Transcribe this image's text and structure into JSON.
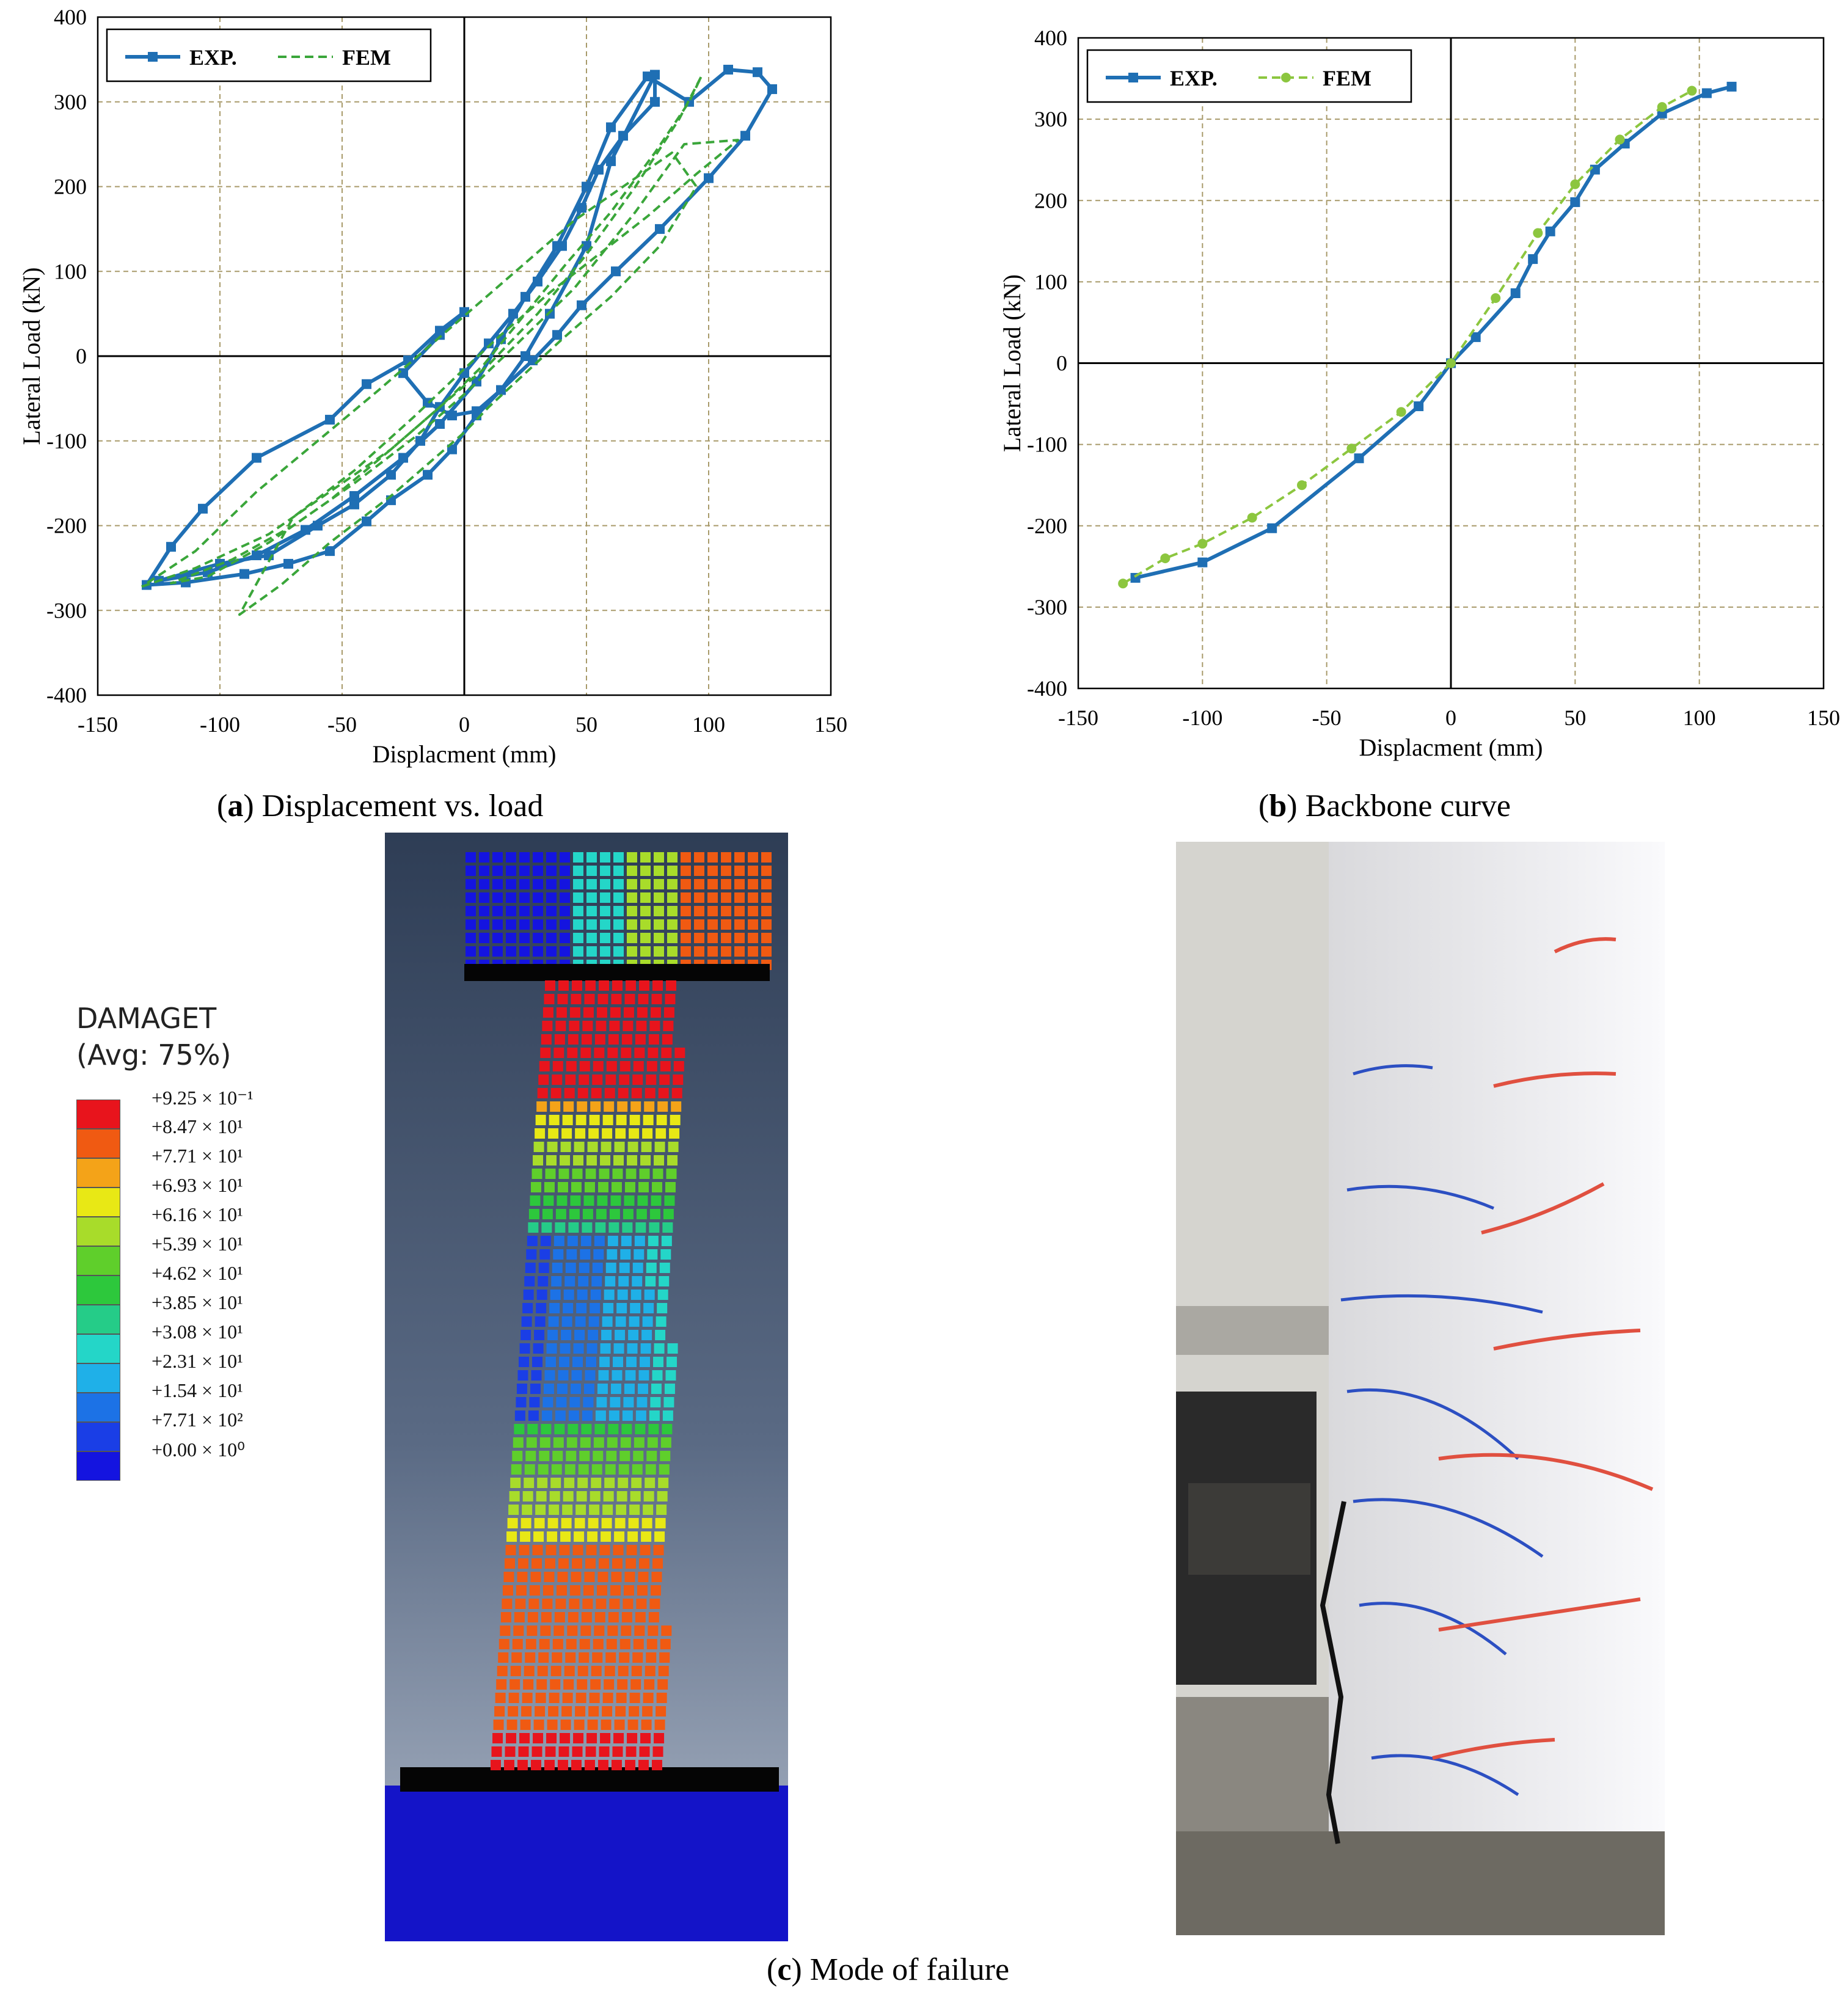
{
  "chart_data": [
    {
      "type": "line",
      "panel": "a",
      "xlabel": "Displacment  (mm)",
      "ylabel": "Lateral Load (kN)",
      "xlim": [
        -150,
        150
      ],
      "ylim": [
        -400,
        400
      ],
      "xticks": [
        "-150",
        "-100",
        "-50",
        "0",
        "50",
        "100",
        "150"
      ],
      "yticks": [
        "400",
        "300",
        "200",
        "100",
        "0",
        "-100",
        "-200",
        "-300",
        "-400"
      ],
      "grid": true,
      "legend_position": "top-left",
      "series": [
        {
          "name": "EXP.",
          "color": "#1f6fb4",
          "marker": "square",
          "style": "solid",
          "points": [
            [
              0,
              52
            ],
            [
              -10,
              30
            ],
            [
              -23,
              -5
            ],
            [
              -40,
              -33
            ],
            [
              -55,
              -75
            ],
            [
              -85,
              -120
            ],
            [
              -107,
              -180
            ],
            [
              -120,
              -225
            ],
            [
              -130,
              -270
            ],
            [
              -114,
              -267
            ],
            [
              -90,
              -257
            ],
            [
              -72,
              -245
            ],
            [
              -55,
              -230
            ],
            [
              -40,
              -195
            ],
            [
              -30,
              -170
            ],
            [
              -15,
              -140
            ],
            [
              -5,
              -110
            ],
            [
              5,
              -70
            ],
            [
              15,
              -40
            ],
            [
              25,
              0
            ],
            [
              35,
              50
            ],
            [
              50,
              130
            ],
            [
              60,
              230
            ],
            [
              78,
              332
            ],
            [
              78,
              300
            ],
            [
              65,
              260
            ],
            [
              55,
              220
            ],
            [
              48,
              175
            ],
            [
              40,
              130
            ],
            [
              30,
              88
            ],
            [
              20,
              50
            ],
            [
              10,
              15
            ],
            [
              0,
              -20
            ],
            [
              -10,
              -60
            ],
            [
              -18,
              -100
            ],
            [
              -30,
              -140
            ],
            [
              -45,
              -175
            ],
            [
              -60,
              -200
            ],
            [
              -80,
              -235
            ],
            [
              -100,
              -245
            ],
            [
              -125,
              -265
            ],
            [
              -105,
              -255
            ],
            [
              -85,
              -235
            ],
            [
              -65,
              -205
            ],
            [
              -45,
              -165
            ],
            [
              -25,
              -120
            ],
            [
              -10,
              -80
            ],
            [
              5,
              -30
            ],
            [
              15,
              20
            ],
            [
              25,
              70
            ],
            [
              38,
              130
            ],
            [
              50,
              200
            ],
            [
              60,
              270
            ],
            [
              75,
              330
            ],
            [
              92,
              300
            ],
            [
              108,
              338
            ],
            [
              120,
              335
            ],
            [
              126,
              315
            ],
            [
              115,
              260
            ],
            [
              100,
              210
            ],
            [
              80,
              150
            ],
            [
              62,
              100
            ],
            [
              48,
              60
            ],
            [
              38,
              25
            ],
            [
              28,
              -5
            ],
            [
              15,
              -40
            ],
            [
              5,
              -65
            ],
            [
              -5,
              -70
            ],
            [
              -15,
              -55
            ],
            [
              -25,
              -20
            ],
            [
              -10,
              25
            ],
            [
              0,
              52
            ]
          ]
        },
        {
          "name": "FEM",
          "color": "#3aa63a",
          "marker": "none",
          "style": "dashed",
          "points": [
            [
              -132,
              -272
            ],
            [
              -110,
              -250
            ],
            [
              -80,
              -210
            ],
            [
              -55,
              -160
            ],
            [
              -30,
              -110
            ],
            [
              -10,
              -60
            ],
            [
              10,
              -10
            ],
            [
              30,
              50
            ],
            [
              50,
              120
            ],
            [
              70,
              200
            ],
            [
              88,
              280
            ],
            [
              97,
              330
            ],
            [
              92,
              300
            ],
            [
              78,
              240
            ],
            [
              60,
              170
            ],
            [
              42,
              110
            ],
            [
              25,
              50
            ],
            [
              8,
              -10
            ],
            [
              -10,
              -60
            ],
            [
              -30,
              -110
            ],
            [
              -55,
              -170
            ],
            [
              -80,
              -220
            ],
            [
              -105,
              -260
            ],
            [
              -120,
              -268
            ],
            [
              -95,
              -240
            ],
            [
              -70,
              -200
            ],
            [
              -45,
              -150
            ],
            [
              -20,
              -95
            ],
            [
              0,
              -45
            ],
            [
              20,
              10
            ],
            [
              45,
              80
            ],
            [
              70,
              170
            ],
            [
              90,
              250
            ],
            [
              112,
              255
            ],
            [
              95,
              215
            ],
            [
              75,
              165
            ],
            [
              55,
              120
            ],
            [
              35,
              75
            ],
            [
              15,
              25
            ],
            [
              0,
              -15
            ],
            [
              -20,
              -70
            ],
            [
              -45,
              -135
            ],
            [
              -70,
              -190
            ],
            [
              -92,
              -305
            ],
            [
              -75,
              -270
            ],
            [
              -55,
              -220
            ],
            [
              -30,
              -165
            ],
            [
              -10,
              -115
            ],
            [
              0,
              -90
            ],
            [
              10,
              -60
            ],
            [
              25,
              -20
            ],
            [
              40,
              20
            ],
            [
              60,
              70
            ],
            [
              80,
              130
            ],
            [
              95,
              200
            ],
            [
              85,
              240
            ],
            [
              65,
              200
            ],
            [
              45,
              160
            ],
            [
              25,
              110
            ],
            [
              5,
              60
            ],
            [
              -15,
              10
            ],
            [
              -35,
              -40
            ],
            [
              -60,
              -100
            ],
            [
              -85,
              -160
            ],
            [
              -110,
              -230
            ],
            [
              -132,
              -272
            ]
          ]
        }
      ]
    },
    {
      "type": "line",
      "panel": "b",
      "xlabel": "Displacment  (mm)",
      "ylabel": "Lateral Load (kN)",
      "xlim": [
        -150,
        150
      ],
      "ylim": [
        -400,
        400
      ],
      "xticks": [
        "-150",
        "-100",
        "-50",
        "0",
        "50",
        "100",
        "150"
      ],
      "yticks": [
        "400",
        "300",
        "200",
        "100",
        "0",
        "-100",
        "-200",
        "-300",
        "-400"
      ],
      "grid": true,
      "legend_position": "top-left",
      "series": [
        {
          "name": "EXP.",
          "color": "#1f6fb4",
          "marker": "square",
          "style": "solid",
          "points": [
            [
              -127,
              -264
            ],
            [
              -100,
              -245
            ],
            [
              -72,
              -203
            ],
            [
              -37,
              -117
            ],
            [
              -13,
              -53
            ],
            [
              0,
              0
            ],
            [
              10,
              32
            ],
            [
              26,
              86
            ],
            [
              33,
              128
            ],
            [
              40,
              162
            ],
            [
              50,
              198
            ],
            [
              58,
              238
            ],
            [
              70,
              270
            ],
            [
              85,
              307
            ],
            [
              103,
              332
            ],
            [
              113,
              340
            ]
          ]
        },
        {
          "name": "FEM",
          "color": "#8cc63f",
          "marker": "circle",
          "style": "dashed",
          "points": [
            [
              -132,
              -271
            ],
            [
              -115,
              -240
            ],
            [
              -100,
              -222
            ],
            [
              -80,
              -190
            ],
            [
              -60,
              -150
            ],
            [
              -40,
              -105
            ],
            [
              -20,
              -60
            ],
            [
              0,
              0
            ],
            [
              18,
              80
            ],
            [
              35,
              160
            ],
            [
              50,
              220
            ],
            [
              68,
              275
            ],
            [
              85,
              315
            ],
            [
              97,
              335
            ]
          ]
        }
      ]
    }
  ],
  "captions": {
    "a_letter": "a",
    "a_text": " Displacement vs. load",
    "b_letter": "b",
    "b_text": " Backbone curve",
    "c_letter": "c",
    "c_text": " Mode of failure"
  },
  "fem_legend": {
    "title": "DAMAGET",
    "subtitle": "(Avg: 75%)",
    "levels": [
      {
        "label": "+9.25 × 10⁻¹",
        "color": "#e8141c"
      },
      {
        "label": "+8.47 × 10¹",
        "color": "#f05a12"
      },
      {
        "label": "+7.71 × 10¹",
        "color": "#f4a318"
      },
      {
        "label": "+6.93 × 10¹",
        "color": "#e8e815"
      },
      {
        "label": "+6.16 × 10¹",
        "color": "#a8dc2a"
      },
      {
        "label": "+5.39 × 10¹",
        "color": "#5fcf2b"
      },
      {
        "label": "+4.62 × 10¹",
        "color": "#2dc83c"
      },
      {
        "label": "+3.85 × 10¹",
        "color": "#25cc88"
      },
      {
        "label": "+3.08 × 10¹",
        "color": "#24d6c8"
      },
      {
        "label": "+2.31 × 10¹",
        "color": "#1fb0e8"
      },
      {
        "label": "+1.54 × 10¹",
        "color": "#1c72e6"
      },
      {
        "label": "+7.71 × 10²",
        "color": "#1a3ee6"
      },
      {
        "label": "+0.00 × 10⁰",
        "color": "#1414e0"
      }
    ]
  }
}
